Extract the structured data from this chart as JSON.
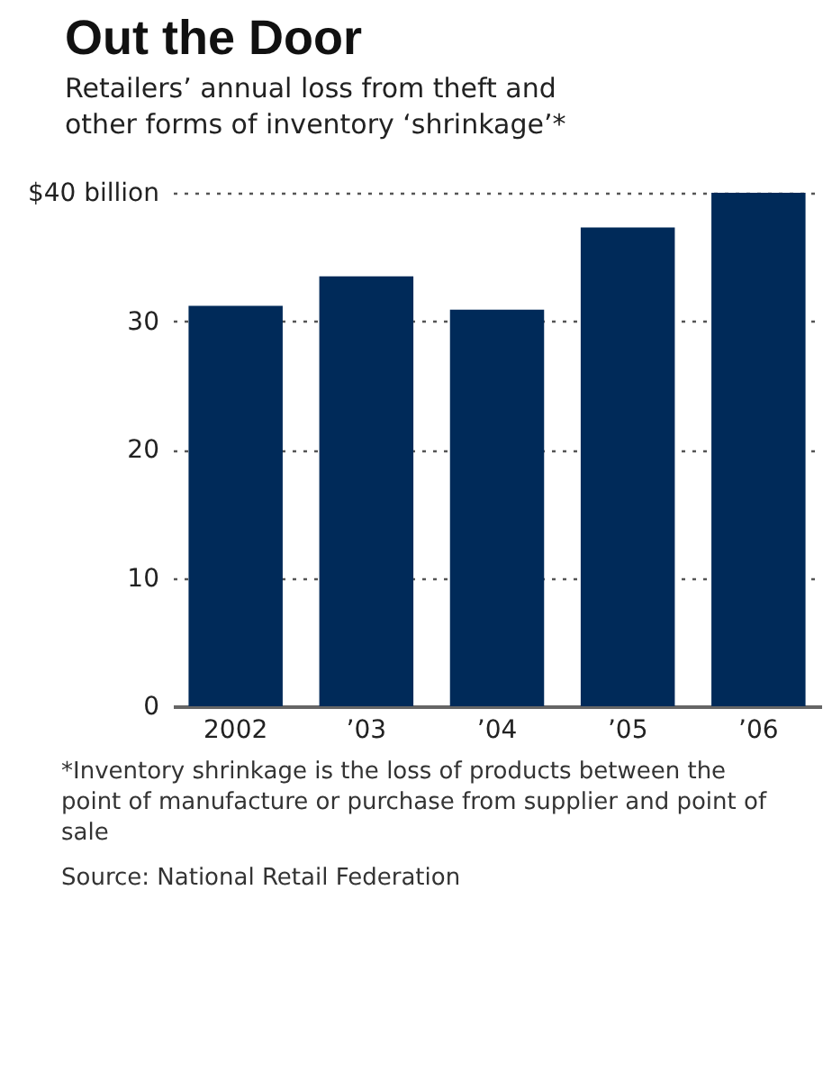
{
  "chart_data": {
    "type": "bar",
    "title": "Out the Door",
    "subtitle": "Retailers’ annual loss from theft and other forms of inventory ‘shrinkage’*",
    "categories": [
      "2002",
      "’03",
      "’04",
      "’05",
      "’06"
    ],
    "values": [
      31.2,
      33.5,
      30.9,
      37.3,
      40
    ],
    "color": "#002a59",
    "ylim": [
      0,
      40
    ],
    "yticks": [
      0,
      10,
      20,
      30,
      {
        "value": 40,
        "label": "$40 billion"
      }
    ],
    "grid": "y",
    "annotations": [
      "*Inventory shrinkage is the loss of products between the point of manufacture or purchase from supplier and point of sale",
      "Source: National Retail Federation"
    ]
  }
}
